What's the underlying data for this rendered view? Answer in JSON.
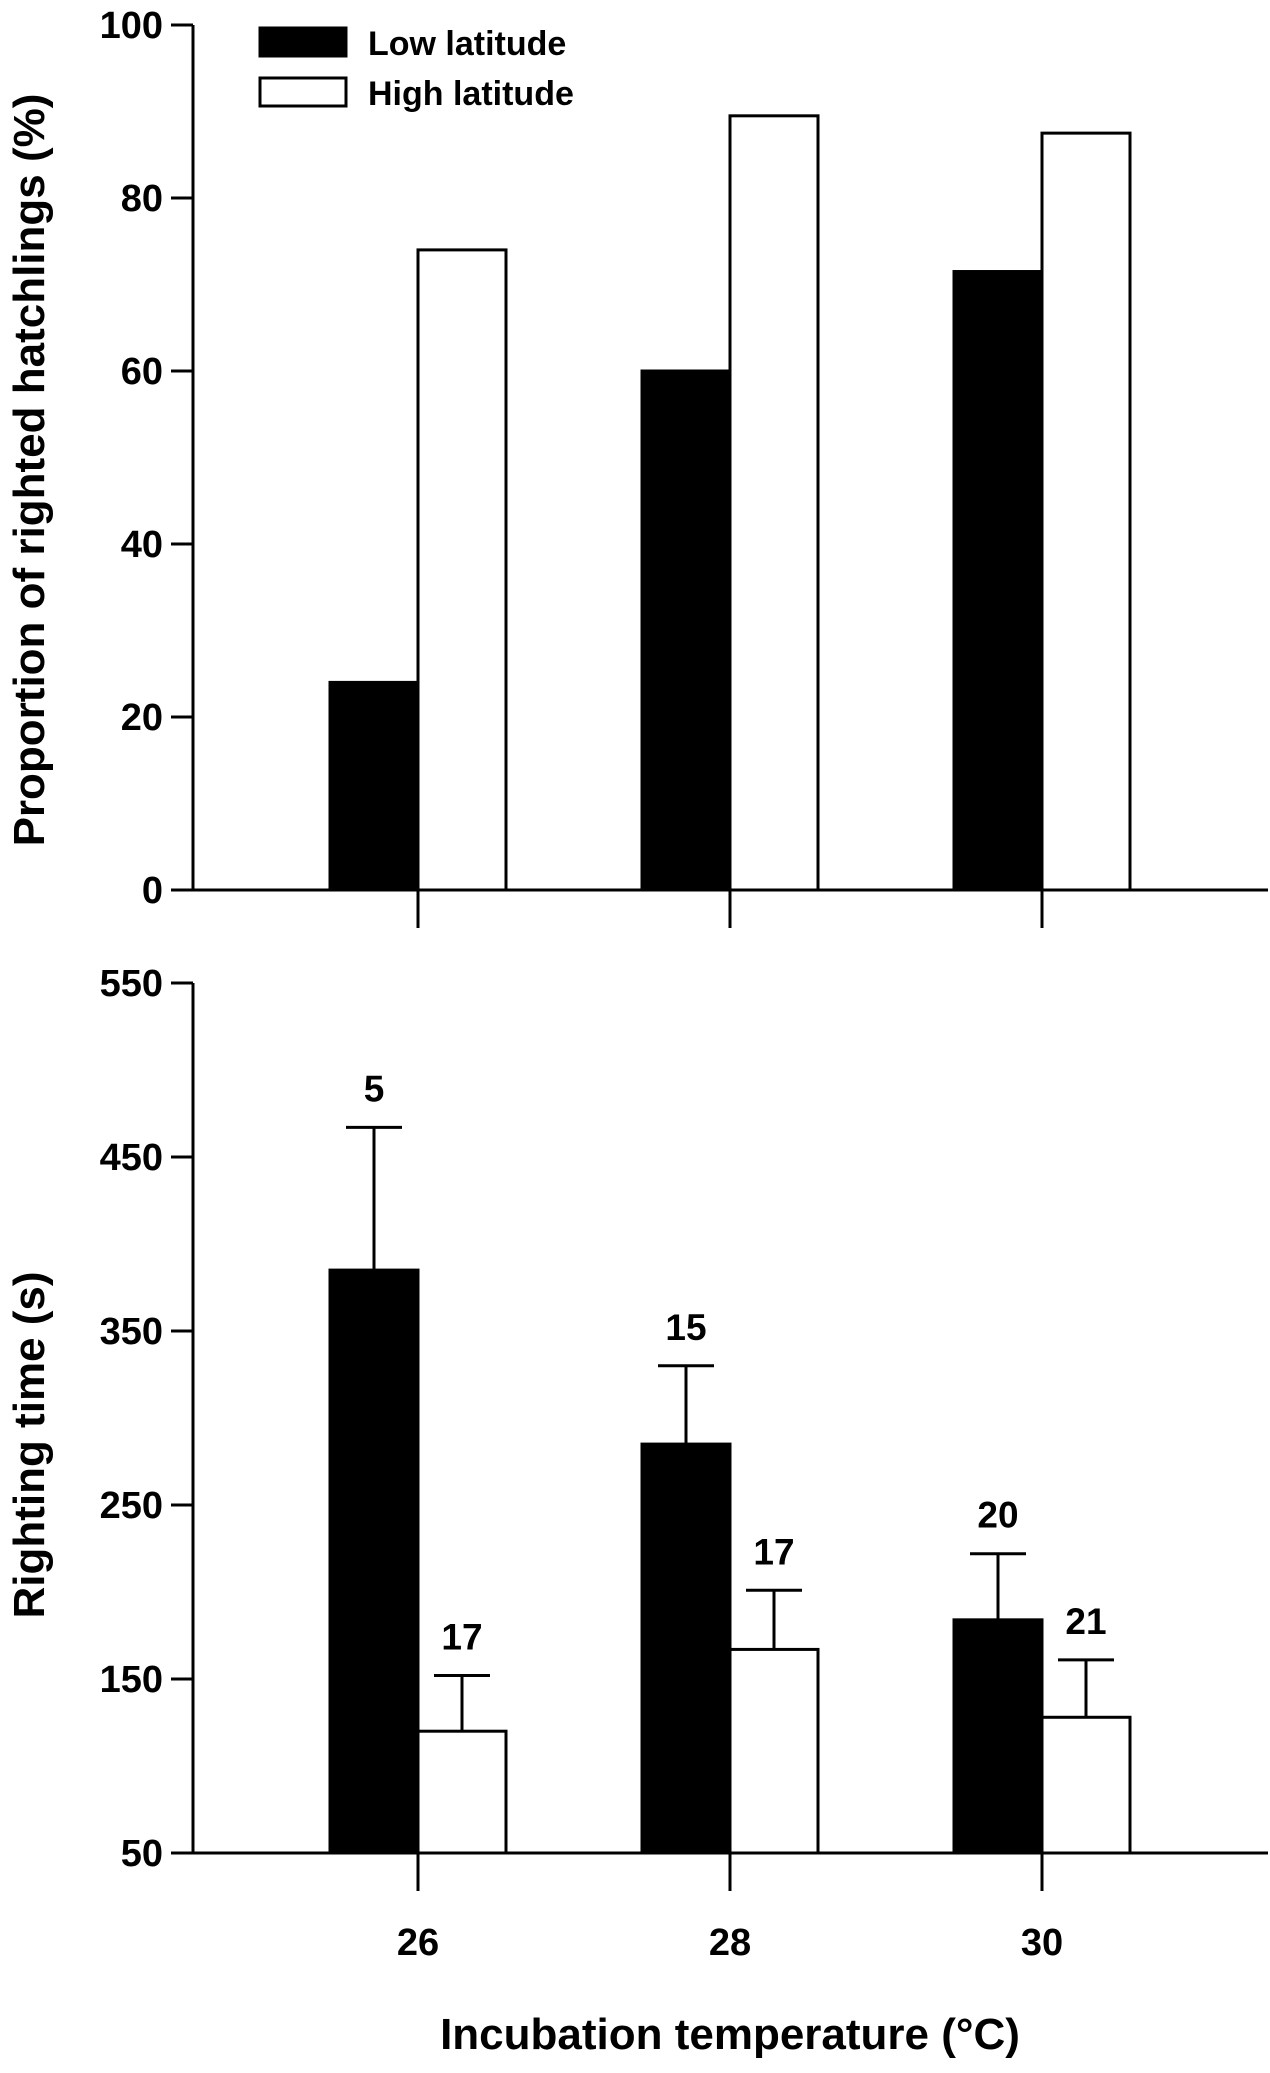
{
  "colors": {
    "low_latitude": "#000000",
    "high_latitude": "#ffffff",
    "axis": "#000000"
  },
  "chart_data": [
    {
      "type": "bar",
      "categories": [
        "26",
        "28",
        "30"
      ],
      "ylabel": "Proportion of righted hatchlings (%)",
      "ylim": [
        0,
        100
      ],
      "yticks": [
        "0",
        "20",
        "40",
        "60",
        "80",
        "100"
      ],
      "legend_placement": "top-left",
      "series": [
        {
          "name": "Low latitude",
          "values": [
            24,
            60,
            71.5
          ]
        },
        {
          "name": "High latitude",
          "values": [
            74,
            89.5,
            87.5
          ]
        }
      ]
    },
    {
      "type": "bar",
      "categories": [
        "26",
        "28",
        "30"
      ],
      "xlabel": "Incubation temperature (°C)",
      "ylabel": "Righting time (s)",
      "ylim": [
        50,
        550
      ],
      "yticks": [
        "50",
        "150",
        "250",
        "350",
        "450",
        "550"
      ],
      "series": [
        {
          "name": "Low latitude",
          "values": [
            385,
            285,
            184
          ],
          "error": [
            82,
            45,
            38
          ],
          "n_labels": [
            "5",
            "15",
            "20"
          ]
        },
        {
          "name": "High latitude",
          "values": [
            120,
            167,
            128
          ],
          "error": [
            32,
            34,
            33
          ],
          "n_labels": [
            "17",
            "17",
            "21"
          ]
        }
      ]
    }
  ]
}
